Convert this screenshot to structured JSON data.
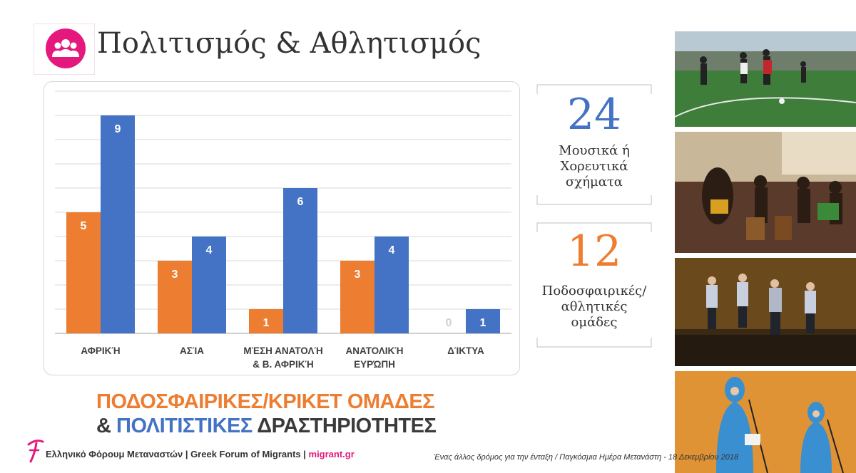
{
  "header": {
    "title": "Πολιτισμός & Αθλητισμός",
    "icon": "people-group-icon",
    "icon_color": "#e5197d"
  },
  "chart_data": {
    "type": "bar",
    "categories": [
      [
        "ΑΦΡΙΚΉ"
      ],
      [
        "ΑΣΊΑ"
      ],
      [
        "ΜΈΣΗ ΑΝΑΤΟΛΉ",
        "& Β. ΑΦΡΙΚΉ"
      ],
      [
        "ΑΝΑΤΟΛΙΚΉ",
        "ΕΥΡΏΠΗ"
      ],
      [
        "ΔΊΚΤΥΑ"
      ]
    ],
    "series": [
      {
        "color": "#ed7d31",
        "values": [
          5,
          3,
          1,
          3,
          0
        ]
      },
      {
        "color": "#4472c4",
        "values": [
          9,
          4,
          6,
          4,
          1
        ]
      }
    ],
    "ylim": [
      0,
      10
    ],
    "gridlines": true,
    "data_labels": true,
    "legend": "none"
  },
  "stats": [
    {
      "number": "24",
      "color": "#4472c4",
      "label_lines": [
        "Μουσικά ή",
        "Χορευτικά",
        "σχήματα"
      ]
    },
    {
      "number": "12",
      "color": "#ed7d31",
      "label_lines": [
        "Ποδοσφαιρικές/",
        "αθλητικές",
        "ομάδες"
      ]
    }
  ],
  "subtitle": {
    "line1": "ΠΟΔΟΣΦΑΙΡΙΚΕΣ/ΚΡΙΚΕΤ ΟΜΑΔΕΣ",
    "line2_prefix": "& ",
    "line2_highlight": "ΠΟΛΙΤΙΣΤΙΚΕΣ",
    "line2_suffix": " ΔΡΑΣΤΗΡΙΟΤΗΤΕΣ",
    "color_orange": "#ed7d31",
    "color_blue": "#4472c4",
    "color_dark": "#3a3a3a"
  },
  "footer": {
    "org": "Ελληνικό Φόρουμ Μεταναστών | Greek Forum of Migrants | ",
    "site": "migrant.gr",
    "site_color": "#e5197d",
    "logo": "gfm-logo",
    "tagline": "Ένας άλλος δρόμος για την ένταξη / Παγκόσμια Ημέρα Μετανάστη - 18 Δεκεμβρίου 2018"
  },
  "photos": [
    "football-photo",
    "african-dance-photo",
    "folk-dance-stage-photo",
    "singers-stage-photo"
  ]
}
